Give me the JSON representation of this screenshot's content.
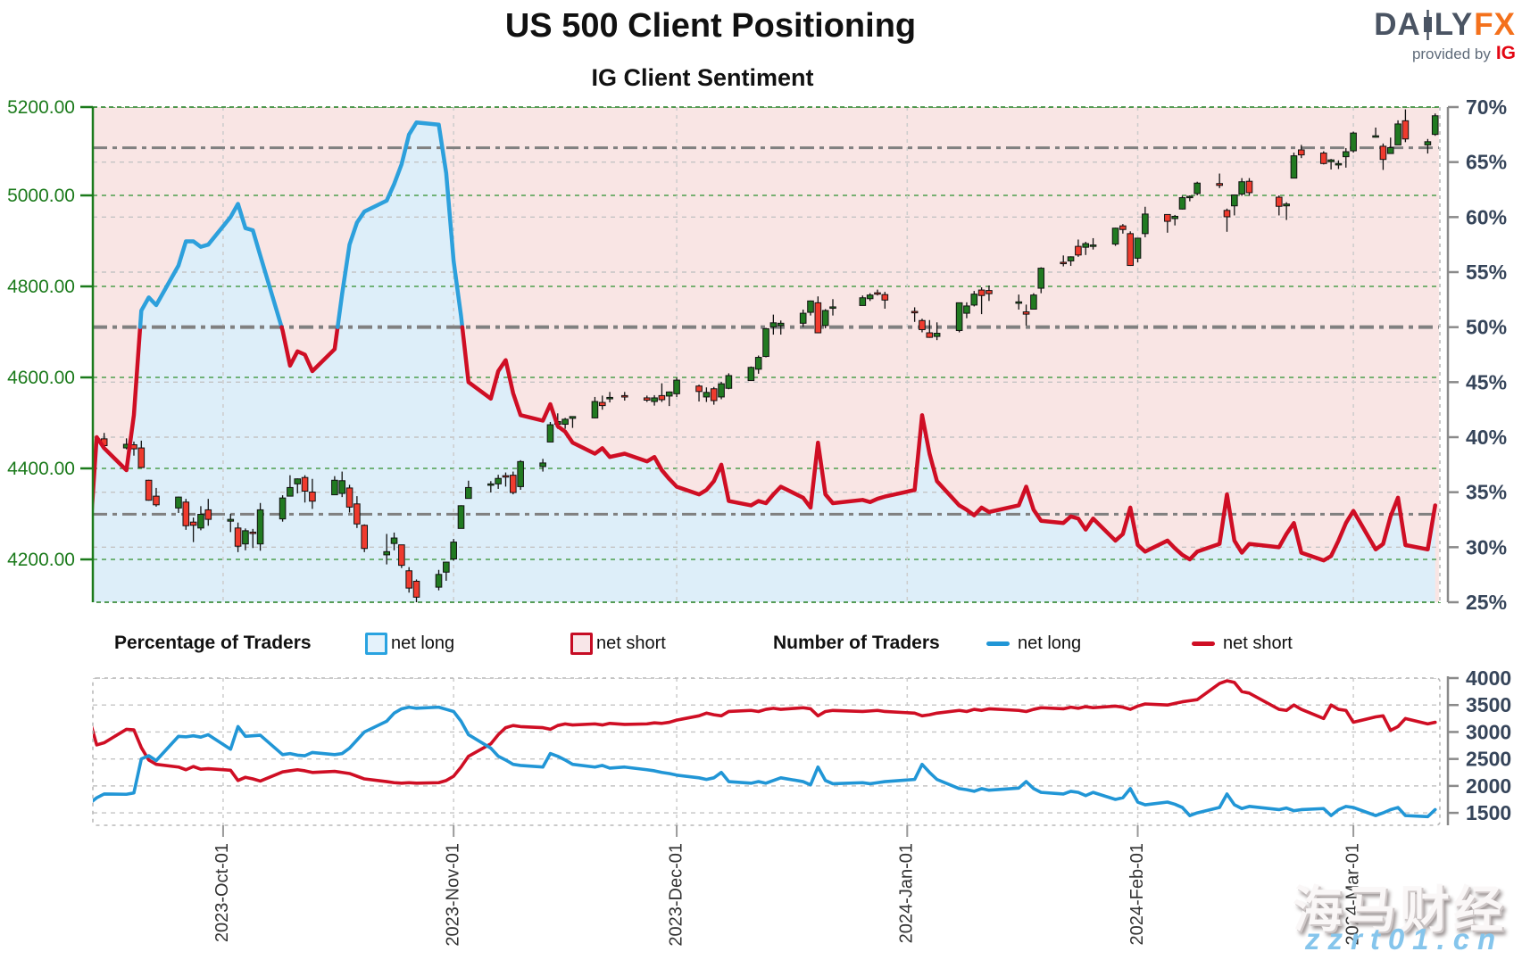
{
  "header": {
    "title": "US 500 Client Positioning",
    "subtitle": "IG Client Sentiment"
  },
  "logo": {
    "brand_left": "DA",
    "brand_right": "LY",
    "brand_fx": "FX",
    "provided_by": "provided by",
    "ig": "IG"
  },
  "legend": {
    "pct_title": "Percentage of Traders",
    "pct_long_label": "net long",
    "pct_short_label": "net short",
    "num_title": "Number of Traders",
    "num_long_label": "net long",
    "num_short_label": "net short"
  },
  "watermark": {
    "line1": "海马财经",
    "line2": "zzrt01.cn"
  },
  "colors": {
    "net_long_blue": "#2da0dc",
    "net_short_red": "#cf0e24",
    "fill_above_pink": "#f9e5e4",
    "fill_below_blue": "#ddeef9",
    "candle_up": "#217a21",
    "candle_down": "#ef3b2e",
    "candle_outline": "#111111",
    "price_axis_green": "#1b7a1b",
    "pct_axis_navy": "#36455a",
    "grid_green": "#4d9e4d",
    "grid_gray": "#c4c4c4",
    "ref_gray": "#808080",
    "border_green": "#3f8f3f",
    "border_gray": "#b9b9b9",
    "spine_gray": "#8a8a8a",
    "date_label": "#333333"
  },
  "chart_data": {
    "type": [
      "candlestick",
      "line",
      "line"
    ],
    "title": "US 500 Client Positioning",
    "subtitle": "IG Client Sentiment",
    "x_axis": {
      "start_date": "2023-09-13",
      "month_ticks": [
        {
          "label": "2023-Oct-01",
          "day": 18
        },
        {
          "label": "2023-Nov-01",
          "day": 49
        },
        {
          "label": "2023-Dec-01",
          "day": 79
        },
        {
          "label": "2024-Jan-01",
          "day": 110
        },
        {
          "label": "2024-Feb-01",
          "day": 141
        },
        {
          "label": "2024-Mar-01",
          "day": 170
        }
      ]
    },
    "days": [
      0,
      1,
      2,
      5,
      6,
      7,
      8,
      9,
      12,
      13,
      14,
      15,
      16,
      19,
      20,
      21,
      22,
      23,
      26,
      27,
      28,
      29,
      30,
      33,
      34,
      35,
      36,
      37,
      40,
      41,
      42,
      43,
      44,
      47,
      48,
      49,
      50,
      51,
      54,
      55,
      56,
      57,
      58,
      61,
      62,
      63,
      64,
      65,
      68,
      69,
      70,
      72,
      75,
      76,
      77,
      78,
      79,
      82,
      83,
      84,
      85,
      86,
      89,
      90,
      91,
      92,
      93,
      96,
      97,
      98,
      99,
      100,
      104,
      105,
      106,
      107,
      111,
      112,
      113,
      114,
      117,
      118,
      119,
      120,
      121,
      125,
      126,
      127,
      128,
      131,
      132,
      133,
      134,
      135,
      138,
      139,
      140,
      141,
      142,
      145,
      146,
      147,
      148,
      149,
      152,
      153,
      154,
      155,
      156,
      160,
      161,
      162,
      163,
      166,
      167,
      168,
      169,
      170,
      173,
      174,
      175,
      176,
      177,
      180,
      181
    ],
    "main_chart": {
      "price_axis": {
        "min": 4106,
        "max": 5194,
        "ticks": [
          4200,
          4400,
          4600,
          4800,
          5000,
          5200
        ]
      },
      "pct_axis": {
        "min": 25,
        "max": 70,
        "ticks": [
          25,
          30,
          35,
          40,
          45,
          50,
          55,
          60,
          65,
          70
        ]
      },
      "reference_lines_pct": [
        66.3,
        50,
        33.0
      ],
      "sentiment_split_pct": 50,
      "net_long_pct": [
        30,
        40,
        39,
        37,
        42,
        51.5,
        52.7,
        52,
        55.6,
        57.8,
        57.8,
        57.3,
        57.5,
        60,
        61.2,
        59,
        58.8,
        56.5,
        49.7,
        46.5,
        47.8,
        47.5,
        46,
        48,
        53,
        57.5,
        59.5,
        60.5,
        61.5,
        63,
        64.8,
        67.5,
        68.6,
        68.4,
        64,
        56,
        51,
        45,
        43.5,
        46,
        47,
        44,
        42,
        41.5,
        43,
        41,
        40.5,
        39.5,
        38.5,
        39,
        38.2,
        38.5,
        37.8,
        38.2,
        37,
        36.2,
        35.5,
        34.8,
        35.2,
        36,
        37.5,
        34.2,
        33.8,
        34.2,
        34,
        34.8,
        35.5,
        34.5,
        33.6,
        39.5,
        34.8,
        34,
        34.3,
        34.1,
        34.4,
        34.6,
        35.2,
        42,
        38.5,
        36,
        33.8,
        33.4,
        32.9,
        33.6,
        33.2,
        33.8,
        35.5,
        33.4,
        32.4,
        32.2,
        32.8,
        32.6,
        31.6,
        32.6,
        30.6,
        31.2,
        33.6,
        30.2,
        29.6,
        30.6,
        29.9,
        29.3,
        28.9,
        29.6,
        30.3,
        34.8,
        30.6,
        29.5,
        30.3,
        30,
        31.2,
        32.2,
        29.5,
        28.8,
        29.2,
        30.6,
        32.2,
        33.3,
        29.8,
        30.3,
        32.8,
        34.5,
        30.2,
        29.8,
        33.8
      ],
      "candles_ohlc": [
        null,
        null,
        [
          4465,
          4478,
          4445,
          4450
        ],
        [
          4445,
          4466,
          4442,
          4453
        ],
        [
          4452,
          4459,
          4428,
          4443
        ],
        [
          4445,
          4461,
          4401,
          4402
        ],
        [
          4374,
          4375,
          4329,
          4330
        ],
        [
          4339,
          4357,
          4316,
          4320
        ],
        [
          4313,
          4338,
          4302,
          4337
        ],
        [
          4326,
          4333,
          4265,
          4274
        ],
        [
          4282,
          4292,
          4238,
          4275
        ],
        [
          4269,
          4317,
          4264,
          4299
        ],
        [
          4309,
          4333,
          4274,
          4288
        ],
        [
          4284,
          4300,
          4260,
          4288
        ],
        [
          4269,
          4281,
          4216,
          4229
        ],
        [
          4234,
          4268,
          4220,
          4263
        ],
        [
          4260,
          4267,
          4225,
          4258
        ],
        [
          4234,
          4324,
          4219,
          4309
        ],
        [
          4289,
          4341,
          4283,
          4335
        ],
        [
          4339,
          4385,
          4339,
          4358
        ],
        [
          4366,
          4378,
          4345,
          4377
        ],
        [
          4380,
          4385,
          4325,
          4350
        ],
        [
          4348,
          4377,
          4311,
          4328
        ],
        [
          4342,
          4383,
          4342,
          4374
        ],
        [
          4345,
          4393,
          4337,
          4373
        ],
        [
          4357,
          4364,
          4303,
          4315
        ],
        [
          4322,
          4339,
          4269,
          4278
        ],
        [
          4275,
          4277,
          4216,
          4224
        ],
        [
          4210,
          4256,
          4189,
          4217
        ],
        [
          4235,
          4259,
          4220,
          4247
        ],
        [
          4232,
          4232,
          4181,
          4187
        ],
        [
          4175,
          4183,
          4127,
          4137
        ],
        [
          4152,
          4156,
          4104,
          4117
        ],
        [
          4139,
          4177,
          4132,
          4167
        ],
        [
          4172,
          4195,
          4153,
          4194
        ],
        [
          4201,
          4245,
          4197,
          4238
        ],
        [
          4268,
          4319,
          4268,
          4318
        ],
        [
          4334,
          4373,
          4334,
          4358
        ],
        [
          4364,
          4372,
          4347,
          4366
        ],
        [
          4366,
          4386,
          4355,
          4378
        ],
        [
          4384,
          4391,
          4360,
          4383
        ],
        [
          4385,
          4393,
          4343,
          4347
        ],
        [
          4360,
          4418,
          4353,
          4415
        ],
        [
          4404,
          4421,
          4393,
          4412
        ],
        [
          4458,
          4502,
          4458,
          4496
        ],
        [
          4497,
          4521,
          4487,
          4503
        ],
        [
          4497,
          4511,
          4487,
          4508
        ],
        [
          4510,
          4514,
          4489,
          4514
        ],
        [
          4511,
          4557,
          4510,
          4547
        ],
        [
          4545,
          4560,
          4529,
          4538
        ],
        [
          4553,
          4568,
          4545,
          4556
        ],
        [
          4560,
          4568,
          4549,
          4559
        ],
        [
          4555,
          4560,
          4546,
          4550
        ],
        [
          4547,
          4561,
          4538,
          4555
        ],
        [
          4560,
          4587,
          4546,
          4551
        ],
        [
          4559,
          4569,
          4537,
          4568
        ],
        [
          4564,
          4599,
          4557,
          4594
        ],
        [
          4581,
          4584,
          4547,
          4569
        ],
        [
          4557,
          4578,
          4546,
          4567
        ],
        [
          4575,
          4579,
          4540,
          4549
        ],
        [
          4557,
          4590,
          4552,
          4586
        ],
        [
          4576,
          4609,
          4574,
          4604
        ],
        [
          4593,
          4624,
          4593,
          4622
        ],
        [
          4618,
          4648,
          4608,
          4644
        ],
        [
          4646,
          4709,
          4644,
          4707
        ],
        [
          4711,
          4738,
          4694,
          4720
        ],
        [
          4714,
          4725,
          4694,
          4719
        ],
        [
          4719,
          4749,
          4711,
          4741
        ],
        [
          4743,
          4769,
          4736,
          4768
        ],
        [
          4764,
          4778,
          4697,
          4698
        ],
        [
          4714,
          4750,
          4708,
          4747
        ],
        [
          4753,
          4772,
          4736,
          4755
        ],
        [
          4758,
          4780,
          4758,
          4775
        ],
        [
          4773,
          4785,
          4768,
          4781
        ],
        [
          4786,
          4793,
          4780,
          4783
        ],
        [
          4782,
          4788,
          4751,
          4770
        ],
        [
          4745,
          4754,
          4722,
          4743
        ],
        [
          4725,
          4729,
          4699,
          4705
        ],
        [
          4698,
          4726,
          4687,
          4688
        ],
        [
          4690,
          4721,
          4682,
          4697
        ],
        [
          4703,
          4764,
          4699,
          4764
        ],
        [
          4741,
          4765,
          4730,
          4757
        ],
        [
          4759,
          4790,
          4756,
          4783
        ],
        [
          4792,
          4798,
          4739,
          4780
        ],
        [
          4791,
          4802,
          4768,
          4784
        ],
        [
          4766,
          4782,
          4749,
          4766
        ],
        [
          4744,
          4760,
          4714,
          4739
        ],
        [
          4750,
          4785,
          4750,
          4781
        ],
        [
          4796,
          4842,
          4785,
          4840
        ],
        [
          4853,
          4868,
          4844,
          4850
        ],
        [
          4856,
          4866,
          4845,
          4865
        ],
        [
          4888,
          4903,
          4865,
          4869
        ],
        [
          4886,
          4898,
          4869,
          4894
        ],
        [
          4888,
          4906,
          4881,
          4891
        ],
        [
          4893,
          4929,
          4889,
          4928
        ],
        [
          4933,
          4937,
          4916,
          4925
        ],
        [
          4916,
          4921,
          4845,
          4846
        ],
        [
          4862,
          4906,
          4853,
          4906
        ],
        [
          4916,
          4975,
          4908,
          4959
        ],
        [
          4958,
          4958,
          4918,
          4943
        ],
        [
          4949,
          4957,
          4934,
          4954
        ],
        [
          4970,
          4999,
          4969,
          4995
        ],
        [
          4996,
          5000,
          4987,
          4998
        ],
        [
          5004,
          5030,
          5000,
          5027
        ],
        [
          5026,
          5048,
          5016,
          5022
        ],
        [
          4967,
          4971,
          4920,
          4953
        ],
        [
          4977,
          5002,
          4956,
          5001
        ],
        [
          5003,
          5038,
          4999,
          5030
        ],
        [
          5031,
          5038,
          4999,
          5006
        ],
        [
          4996,
          5000,
          4956,
          4976
        ],
        [
          4977,
          4985,
          4946,
          4981
        ],
        [
          5038,
          5094,
          5038,
          5087
        ],
        [
          5100,
          5111,
          5082,
          5089
        ],
        [
          5093,
          5097,
          5068,
          5070
        ],
        [
          5074,
          5080,
          5057,
          5078
        ],
        [
          5067,
          5077,
          5058,
          5070
        ],
        [
          5085,
          5104,
          5061,
          5096
        ],
        [
          5098,
          5140,
          5094,
          5137
        ],
        [
          5131,
          5149,
          5127,
          5131
        ],
        [
          5108,
          5114,
          5056,
          5079
        ],
        [
          5092,
          5127,
          5092,
          5105
        ],
        [
          5111,
          5165,
          5111,
          5157
        ],
        [
          5164,
          5189,
          5117,
          5124
        ],
        [
          5111,
          5124,
          5092,
          5118
        ],
        [
          5134,
          5180,
          5131,
          5175
        ]
      ]
    },
    "bottom_chart": {
      "count_axis": {
        "min": 1270,
        "max": 4000,
        "ticks": [
          1500,
          2000,
          2500,
          3000,
          3500,
          4000
        ]
      },
      "net_long_count": [
        1670,
        1780,
        1850,
        1845,
        1870,
        2500,
        2560,
        2470,
        2920,
        2910,
        2930,
        2905,
        2950,
        2680,
        3100,
        2920,
        2930,
        2940,
        2580,
        2600,
        2570,
        2560,
        2620,
        2580,
        2600,
        2700,
        2850,
        3000,
        3200,
        3350,
        3430,
        3460,
        3440,
        3460,
        3420,
        3380,
        3200,
        2950,
        2700,
        2550,
        2480,
        2400,
        2380,
        2350,
        2600,
        2550,
        2480,
        2400,
        2350,
        2380,
        2330,
        2350,
        2300,
        2280,
        2250,
        2230,
        2200,
        2150,
        2120,
        2150,
        2250,
        2080,
        2050,
        2080,
        2050,
        2100,
        2150,
        2080,
        2020,
        2350,
        2100,
        2040,
        2060,
        2040,
        2060,
        2080,
        2120,
        2400,
        2250,
        2120,
        1950,
        1930,
        1900,
        1950,
        1920,
        1960,
        2080,
        1950,
        1880,
        1850,
        1900,
        1880,
        1820,
        1880,
        1750,
        1780,
        1950,
        1700,
        1650,
        1700,
        1660,
        1600,
        1450,
        1500,
        1600,
        1850,
        1650,
        1580,
        1620,
        1560,
        1590,
        1540,
        1560,
        1580,
        1450,
        1560,
        1620,
        1600,
        1450,
        1500,
        1560,
        1600,
        1450,
        1430,
        1560
      ],
      "net_short_count": [
        3250,
        2760,
        2800,
        3050,
        3040,
        2710,
        2480,
        2400,
        2350,
        2300,
        2360,
        2310,
        2320,
        2290,
        2100,
        2160,
        2130,
        2090,
        2260,
        2280,
        2300,
        2280,
        2250,
        2270,
        2250,
        2230,
        2180,
        2130,
        2080,
        2060,
        2050,
        2060,
        2050,
        2060,
        2100,
        2180,
        2350,
        2550,
        2780,
        2950,
        3080,
        3120,
        3100,
        3080,
        3050,
        3120,
        3150,
        3130,
        3150,
        3130,
        3160,
        3140,
        3150,
        3170,
        3160,
        3180,
        3220,
        3300,
        3350,
        3320,
        3300,
        3380,
        3400,
        3380,
        3420,
        3440,
        3420,
        3450,
        3430,
        3300,
        3380,
        3400,
        3380,
        3390,
        3400,
        3380,
        3350,
        3300,
        3320,
        3350,
        3400,
        3380,
        3420,
        3400,
        3430,
        3400,
        3380,
        3420,
        3450,
        3430,
        3460,
        3440,
        3470,
        3450,
        3480,
        3460,
        3420,
        3480,
        3520,
        3500,
        3530,
        3560,
        3580,
        3600,
        3900,
        3950,
        3920,
        3750,
        3720,
        3420,
        3400,
        3500,
        3420,
        3250,
        3500,
        3420,
        3400,
        3180,
        3280,
        3300,
        3030,
        3100,
        3250,
        3150,
        3180
      ]
    }
  }
}
